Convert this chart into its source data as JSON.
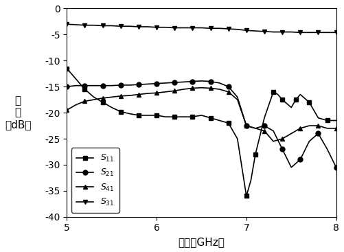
{
  "title": "",
  "xlabel": "频率（GHz）",
  "ylabel": "幅\n度\n（dB）",
  "xlim": [
    5,
    8
  ],
  "ylim": [
    -40,
    0
  ],
  "xticks": [
    5,
    6,
    7,
    8
  ],
  "yticks": [
    0,
    -5,
    -10,
    -15,
    -20,
    -25,
    -30,
    -35,
    -40
  ],
  "S11_x": [
    5.0,
    5.1,
    5.2,
    5.3,
    5.4,
    5.5,
    5.6,
    5.7,
    5.8,
    5.9,
    6.0,
    6.1,
    6.2,
    6.3,
    6.4,
    6.5,
    6.6,
    6.7,
    6.8,
    6.9,
    7.0,
    7.05,
    7.1,
    7.2,
    7.3,
    7.35,
    7.4,
    7.5,
    7.55,
    7.6,
    7.7,
    7.8,
    7.9,
    8.0
  ],
  "S11_y": [
    -11.5,
    -13.5,
    -15.5,
    -17.0,
    -18.0,
    -19.0,
    -19.8,
    -20.2,
    -20.5,
    -20.5,
    -20.5,
    -20.8,
    -20.8,
    -20.8,
    -20.8,
    -20.5,
    -21.0,
    -21.5,
    -22.0,
    -25.0,
    -36.0,
    -33.0,
    -28.0,
    -21.0,
    -16.0,
    -16.5,
    -17.5,
    -19.0,
    -17.5,
    -16.5,
    -18.0,
    -21.0,
    -21.5,
    -21.5
  ],
  "S21_x": [
    5.0,
    5.1,
    5.2,
    5.3,
    5.4,
    5.5,
    5.6,
    5.7,
    5.8,
    5.9,
    6.0,
    6.1,
    6.2,
    6.3,
    6.4,
    6.5,
    6.6,
    6.7,
    6.8,
    6.9,
    7.0,
    7.1,
    7.2,
    7.3,
    7.4,
    7.5,
    7.6,
    7.7,
    7.8,
    7.9,
    8.0
  ],
  "S21_y": [
    -15.0,
    -14.8,
    -14.8,
    -14.8,
    -14.8,
    -14.8,
    -14.7,
    -14.7,
    -14.6,
    -14.5,
    -14.4,
    -14.3,
    -14.2,
    -14.1,
    -14.0,
    -13.9,
    -14.0,
    -14.3,
    -15.0,
    -17.0,
    -22.5,
    -23.0,
    -22.5,
    -23.5,
    -27.0,
    -30.5,
    -29.0,
    -25.5,
    -24.0,
    -27.0,
    -30.5
  ],
  "S41_x": [
    5.0,
    5.1,
    5.2,
    5.3,
    5.4,
    5.5,
    5.6,
    5.7,
    5.8,
    5.9,
    6.0,
    6.1,
    6.2,
    6.3,
    6.4,
    6.5,
    6.6,
    6.7,
    6.8,
    6.9,
    7.0,
    7.1,
    7.2,
    7.3,
    7.4,
    7.5,
    7.6,
    7.7,
    7.8,
    7.9,
    8.0
  ],
  "S41_y": [
    -19.5,
    -18.5,
    -17.8,
    -17.5,
    -17.2,
    -17.0,
    -16.8,
    -16.7,
    -16.5,
    -16.3,
    -16.2,
    -16.0,
    -15.8,
    -15.5,
    -15.3,
    -15.2,
    -15.3,
    -15.5,
    -16.0,
    -17.5,
    -22.5,
    -23.0,
    -23.5,
    -25.5,
    -25.0,
    -24.0,
    -23.0,
    -22.5,
    -22.5,
    -23.0,
    -23.0
  ],
  "S31_x": [
    5.0,
    5.1,
    5.2,
    5.3,
    5.4,
    5.5,
    5.6,
    5.7,
    5.8,
    5.9,
    6.0,
    6.1,
    6.2,
    6.3,
    6.4,
    6.5,
    6.6,
    6.7,
    6.8,
    6.9,
    7.0,
    7.1,
    7.2,
    7.3,
    7.4,
    7.5,
    7.6,
    7.7,
    7.8,
    7.9,
    8.0
  ],
  "S31_y": [
    -3.0,
    -3.1,
    -3.2,
    -3.2,
    -3.3,
    -3.3,
    -3.4,
    -3.4,
    -3.5,
    -3.5,
    -3.6,
    -3.6,
    -3.7,
    -3.7,
    -3.7,
    -3.7,
    -3.8,
    -3.8,
    -3.9,
    -4.0,
    -4.2,
    -4.3,
    -4.4,
    -4.5,
    -4.5,
    -4.5,
    -4.6,
    -4.6,
    -4.6,
    -4.6,
    -4.6
  ],
  "S11_label": "$S_{11}$",
  "S21_label": "$S_{21}$",
  "S41_label": "$S_{41}$",
  "S31_label": "$S_{31}$",
  "line_color": "#000000",
  "marker_S11": "s",
  "marker_S21": "o",
  "marker_S41": "^",
  "marker_S31": "v",
  "marker_size": 5,
  "linewidth": 1.2,
  "bg_color": "#ffffff",
  "legend_loc": "lower left",
  "legend_fontsize": 9,
  "axis_fontsize": 11,
  "tick_fontsize": 10
}
